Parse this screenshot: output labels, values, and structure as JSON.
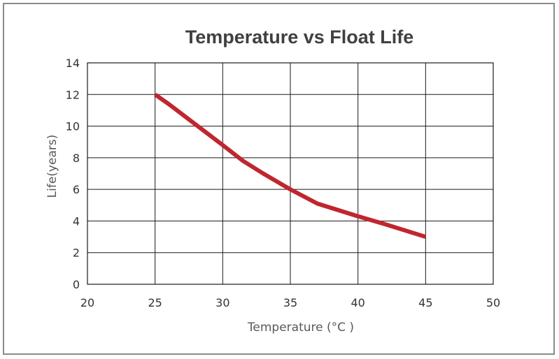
{
  "chart_data": {
    "type": "line",
    "title": "Temperature vs Float Life",
    "xlabel": "Temperature (°C )",
    "ylabel": "Life(years)",
    "xlim": [
      20,
      50
    ],
    "ylim": [
      0,
      14
    ],
    "x_ticks": [
      "20",
      "25",
      "30",
      "35",
      "40",
      "45",
      "50"
    ],
    "y_ticks": [
      "0",
      "2",
      "4",
      "6",
      "8",
      "10",
      "12",
      "14"
    ],
    "grid": true,
    "legend": "none",
    "series": [
      {
        "color": "#c0262f",
        "x": [
          25,
          26,
          28,
          30,
          31.5,
          33,
          35,
          37,
          40,
          42,
          45
        ],
        "y": [
          12,
          11.4,
          10.1,
          8.8,
          7.8,
          7.0,
          6.0,
          5.1,
          4.3,
          3.8,
          3.0
        ]
      }
    ]
  }
}
